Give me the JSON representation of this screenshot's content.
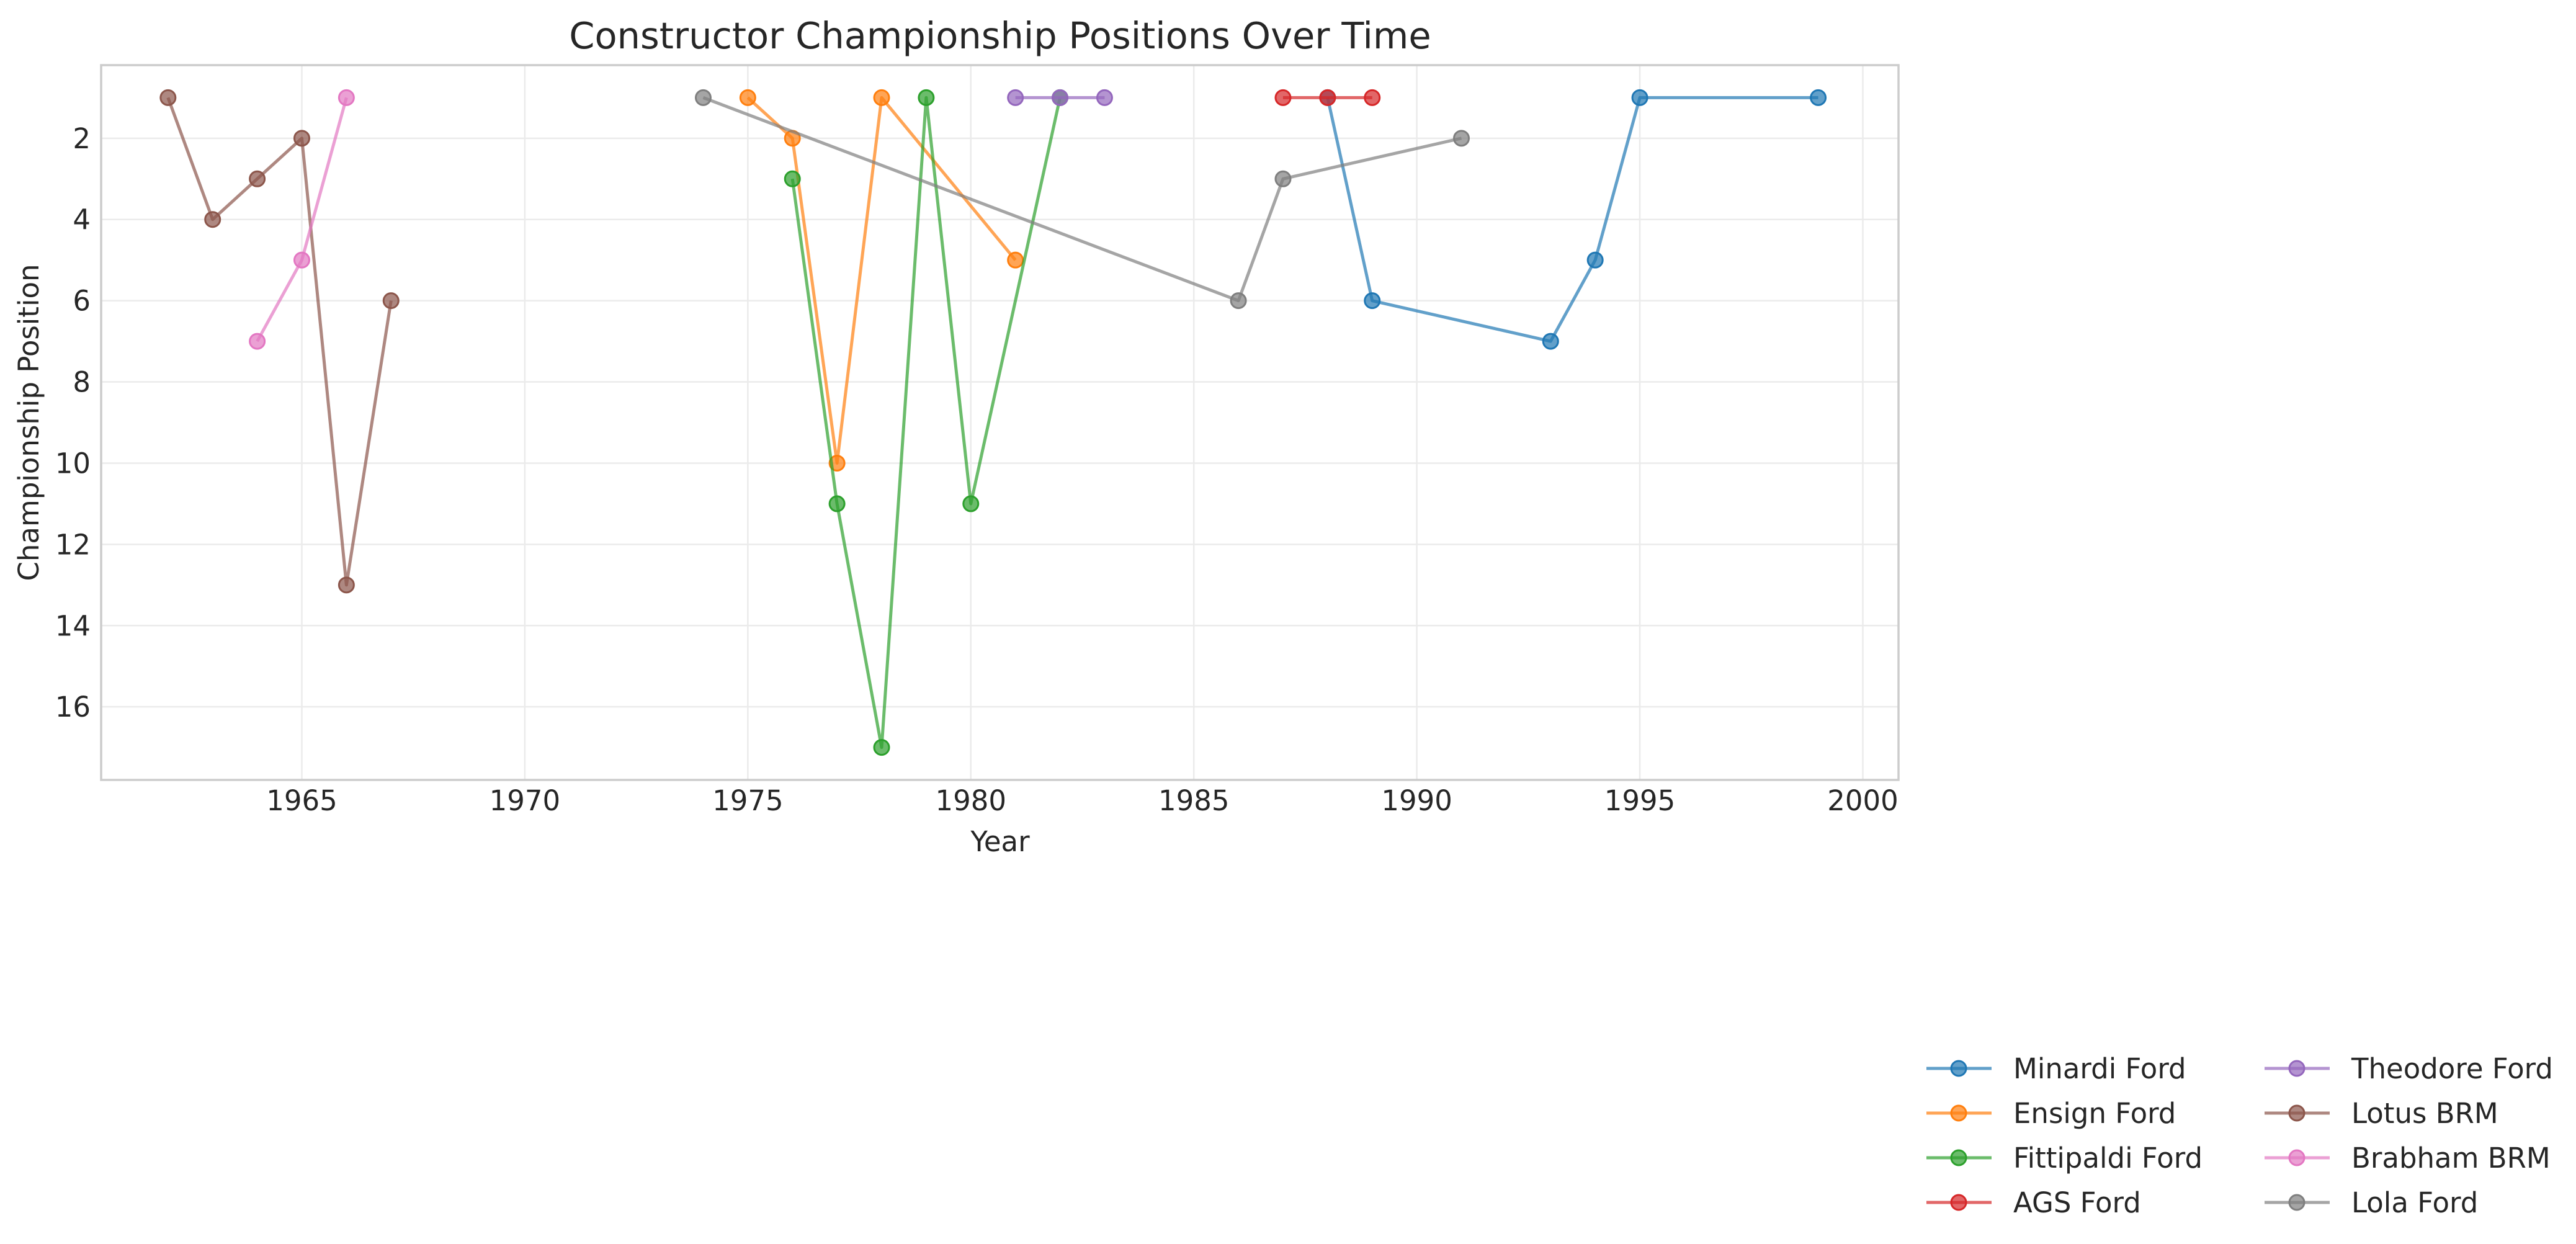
{
  "chart_data": {
    "type": "line",
    "title": "Constructor Championship Positions Over Time",
    "xlabel": "Year",
    "ylabel": "Championship Position",
    "xlim": [
      1960.5,
      2000.8
    ],
    "ylim": [
      17.8,
      0.2
    ],
    "y_inverted": true,
    "xticks": [
      1965,
      1970,
      1975,
      1980,
      1985,
      1990,
      1995,
      2000
    ],
    "yticks": [
      2,
      4,
      6,
      8,
      10,
      12,
      14,
      16
    ],
    "grid": true,
    "legend_placement": "lower-right outside",
    "legend_columns": 2,
    "series": [
      {
        "name": "Minardi Ford",
        "color": "#1f77b4",
        "x": [
          1988,
          1989,
          1993,
          1994,
          1995,
          1999
        ],
        "y": [
          1,
          6,
          7,
          5,
          1,
          1
        ]
      },
      {
        "name": "Ensign Ford",
        "color": "#ff7f0e",
        "x": [
          1975,
          1976,
          1977,
          1978,
          1981
        ],
        "y": [
          1,
          2,
          10,
          1,
          5
        ]
      },
      {
        "name": "Fittipaldi Ford",
        "color": "#2ca02c",
        "x": [
          1976,
          1977,
          1978,
          1979,
          1980,
          1982
        ],
        "y": [
          3,
          11,
          17,
          1,
          11,
          1
        ]
      },
      {
        "name": "AGS Ford",
        "color": "#d62728",
        "x": [
          1987,
          1988,
          1989
        ],
        "y": [
          1,
          1,
          1
        ]
      },
      {
        "name": "Theodore Ford",
        "color": "#9467bd",
        "x": [
          1981,
          1982,
          1983
        ],
        "y": [
          1,
          1,
          1
        ]
      },
      {
        "name": "Lotus BRM",
        "color": "#8c564b",
        "x": [
          1962,
          1963,
          1964,
          1965,
          1966,
          1967
        ],
        "y": [
          1,
          4,
          3,
          2,
          13,
          6
        ]
      },
      {
        "name": "Brabham BRM",
        "color": "#e377c2",
        "x": [
          1964,
          1965,
          1966
        ],
        "y": [
          7,
          5,
          1
        ]
      },
      {
        "name": "Lola Ford",
        "color": "#7f7f7f",
        "x": [
          1974,
          1986,
          1987,
          1991
        ],
        "y": [
          1,
          6,
          3,
          2
        ]
      }
    ]
  }
}
